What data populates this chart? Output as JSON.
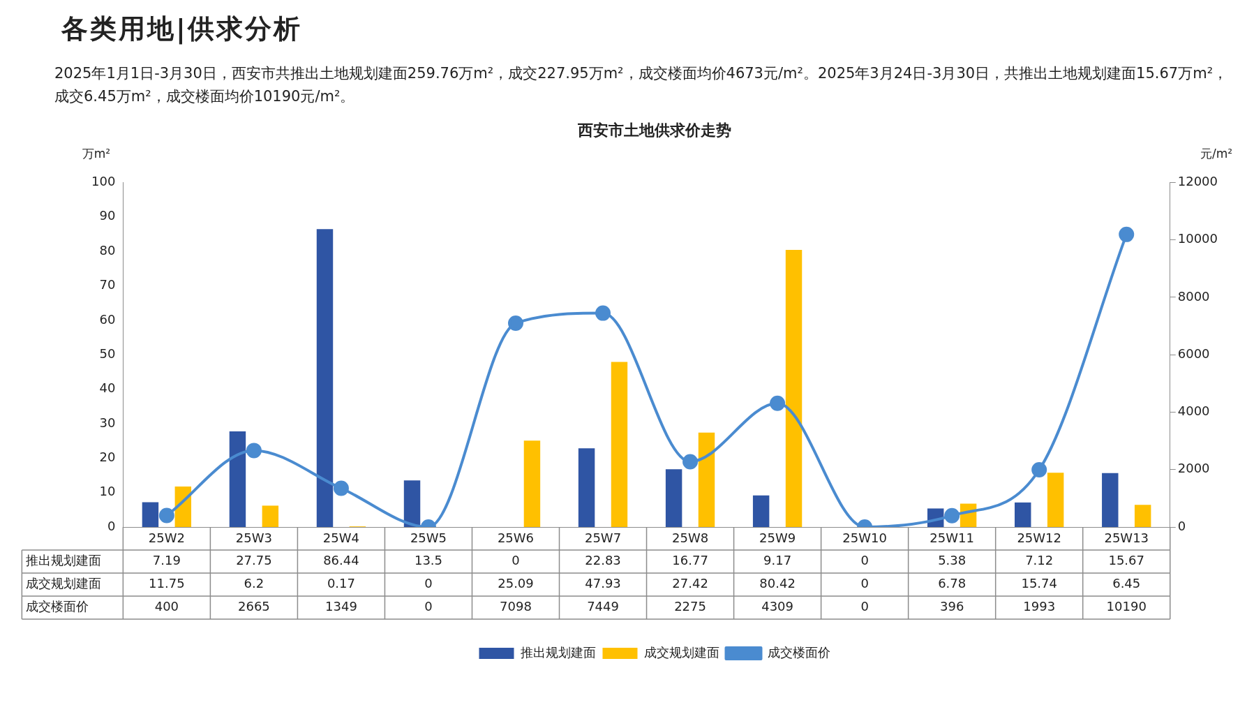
{
  "chart_data": {
    "type": "bar",
    "title": "西安市土地供求价走势",
    "subtitle": "2025年1月1日-3月30日，西安市共推出土地规划建面259.76万m²，成交227.95万m²，成交楼面均价4673元/m²。2025年3月24日-3月30日，共推出土地规划建面15.67万m²，成交6.45万m²，成交楼面均价10190元/m²。",
    "annotations": [
      "各类用地|供求分析"
    ],
    "ylabel": "万m²",
    "y2label": "元/m²",
    "categories": [
      "25W2",
      "25W3",
      "25W4",
      "25W5",
      "25W6",
      "25W7",
      "25W8",
      "25W9",
      "25W10",
      "25W11",
      "25W12",
      "25W13"
    ],
    "series": [
      {
        "name": "推出规划建面",
        "color": "#2f55a4",
        "values": [
          7.19,
          27.75,
          86.44,
          13.5,
          0,
          22.83,
          16.77,
          9.17,
          0,
          5.38,
          7.12,
          15.67
        ]
      },
      {
        "name": "成交规划建面",
        "color": "#ffc000",
        "values": [
          11.75,
          6.2,
          0.17,
          0,
          25.09,
          47.93,
          27.42,
          80.42,
          0,
          6.78,
          15.74,
          6.45
        ]
      },
      {
        "name": "成交楼面价",
        "type": "line",
        "axis": "y2",
        "color": "#4a8bd0",
        "values": [
          400,
          2665,
          1349,
          0,
          7098,
          7449,
          2275,
          4309,
          0,
          396,
          1993,
          10190
        ]
      }
    ],
    "ylim": [
      0,
      100
    ],
    "yticks": [
      0,
      10,
      20,
      30,
      40,
      50,
      60,
      70,
      80,
      90,
      100
    ],
    "y2lim": [
      0,
      12000
    ],
    "y2ticks": [
      0,
      2000,
      4000,
      6000,
      8000,
      10000,
      12000
    ],
    "data_labels": true,
    "legend": "bottom",
    "marker": "circle"
  }
}
